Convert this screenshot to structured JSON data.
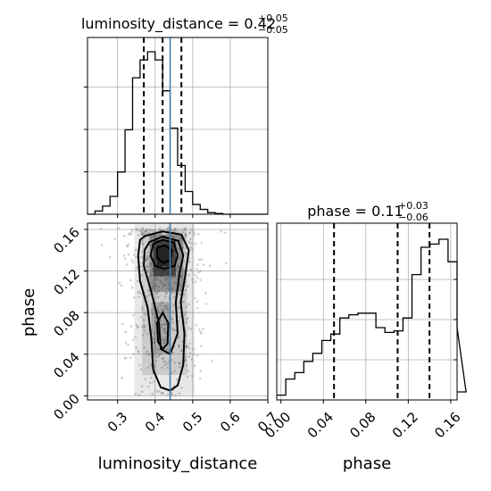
{
  "chart_data": [
    {
      "type": "histogram",
      "panel": "marginal-luminosity_distance",
      "title": {
        "param": "luminosity_distance",
        "median": "0.42",
        "plus": "+0.05",
        "minus": "−0.05"
      },
      "xlim": [
        0.22,
        0.7
      ],
      "bins_start": 0.22,
      "bin_width": 0.02,
      "counts": [
        0,
        0.02,
        0.05,
        0.11,
        0.26,
        0.52,
        0.84,
        0.95,
        1.0,
        0.95,
        0.76,
        0.53,
        0.3,
        0.14,
        0.06,
        0.03,
        0.01,
        0.005,
        0,
        0,
        0,
        0,
        0,
        0
      ],
      "quantiles": [
        0.37,
        0.42,
        0.47
      ],
      "truth": 0.44,
      "grid": true
    },
    {
      "type": "histogram",
      "panel": "marginal-phase",
      "title": {
        "param": "phase",
        "median": "0.11",
        "plus": "+0.03",
        "minus": "−0.06"
      },
      "xlim": [
        -0.004,
        0.166
      ],
      "xticks": [
        "0.00",
        "0.04",
        "0.08",
        "0.12",
        "0.16"
      ],
      "xlabel": "phase",
      "bins_start": -0.004,
      "bin_width": 0.0085,
      "counts": [
        0.03,
        0.13,
        0.17,
        0.24,
        0.29,
        0.37,
        0.41,
        0.51,
        0.53,
        0.54,
        0.54,
        0.45,
        0.42,
        0.43,
        0.51,
        0.78,
        0.95,
        0.97,
        1.0,
        0.86,
        0.45,
        0.05
      ],
      "quantiles": [
        0.05,
        0.11,
        0.14
      ],
      "grid": true
    },
    {
      "type": "scatter",
      "panel": "joint-luminosity_distance-phase",
      "xlim": [
        0.22,
        0.7
      ],
      "ylim": [
        -0.004,
        0.166
      ],
      "xticks": [
        "0.3",
        "0.4",
        "0.5",
        "0.6",
        "0.7"
      ],
      "yticks": [
        "0.00",
        "0.04",
        "0.08",
        "0.12",
        "0.16"
      ],
      "xlabel": "luminosity_distance",
      "ylabel": "phase",
      "truth_x": 0.44,
      "density_peak": {
        "x": 0.42,
        "y": 0.14
      },
      "grid": true
    }
  ],
  "colors": {
    "truth": "#4682b4",
    "samples": "#9a9a9a",
    "grid": "#b0b0b0",
    "density_dark": "#202020"
  }
}
